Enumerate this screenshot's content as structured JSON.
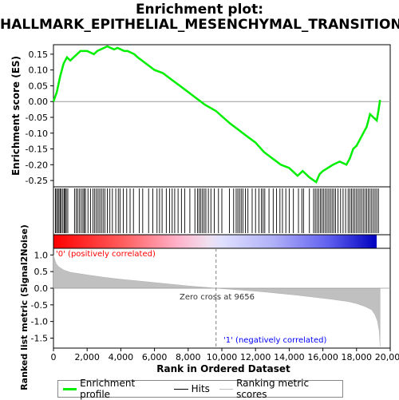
{
  "title_line1": "Enrichment plot:",
  "title_line2": "HALLMARK_EPITHELIAL_MESENCHYMAL_TRANSITION",
  "colors": {
    "profile": "#00ee00",
    "hits": "#000000",
    "ranking": "#c0c0c0",
    "zero_line": "#808080",
    "pos_label": "#ff0000",
    "neg_label": "#0000ff"
  },
  "legend": {
    "profile": "Enrichment profile",
    "hits": "Hits",
    "ranking": "Ranking metric scores"
  },
  "chart_data": [
    {
      "type": "line",
      "panel": "enrichment",
      "ylabel": "Enrichment score (ES)",
      "ylim": [
        -0.27,
        0.18
      ],
      "yticks": [
        0.15,
        0.1,
        0.05,
        0.0,
        -0.05,
        -0.1,
        -0.15,
        -0.2,
        -0.25
      ],
      "xlim": [
        0,
        20000
      ],
      "series": [
        {
          "name": "Enrichment profile",
          "x": [
            0,
            200,
            400,
            600,
            800,
            1000,
            1200,
            1400,
            1600,
            1800,
            2000,
            2200,
            2400,
            2600,
            2800,
            3000,
            3200,
            3400,
            3600,
            3800,
            4000,
            4200,
            4400,
            4600,
            4800,
            5000,
            5500,
            6000,
            6500,
            7000,
            7500,
            8000,
            8500,
            9000,
            9656,
            10500,
            11000,
            11500,
            12000,
            12500,
            13000,
            13500,
            14000,
            14500,
            14800,
            15200,
            15600,
            15800,
            16000,
            16300,
            16600,
            17000,
            17400,
            17600,
            17800,
            18000,
            18200,
            18400,
            18600,
            18800,
            19000,
            19200,
            19300,
            19400
          ],
          "y": [
            0.0,
            0.03,
            0.08,
            0.12,
            0.14,
            0.13,
            0.14,
            0.15,
            0.16,
            0.16,
            0.16,
            0.155,
            0.15,
            0.16,
            0.165,
            0.17,
            0.175,
            0.17,
            0.165,
            0.17,
            0.165,
            0.16,
            0.16,
            0.155,
            0.15,
            0.14,
            0.12,
            0.1,
            0.09,
            0.07,
            0.05,
            0.03,
            0.01,
            -0.01,
            -0.03,
            -0.07,
            -0.09,
            -0.11,
            -0.13,
            -0.16,
            -0.18,
            -0.2,
            -0.21,
            -0.235,
            -0.22,
            -0.24,
            -0.255,
            -0.23,
            -0.22,
            -0.21,
            -0.2,
            -0.19,
            -0.2,
            -0.18,
            -0.15,
            -0.14,
            -0.12,
            -0.1,
            -0.08,
            -0.04,
            -0.05,
            -0.06,
            -0.03,
            0.005
          ]
        }
      ]
    },
    {
      "type": "scatter",
      "panel": "hits",
      "xlim": [
        0,
        20000
      ],
      "hit_positions": [
        120,
        180,
        260,
        330,
        400,
        470,
        560,
        640,
        700,
        760,
        850,
        1250,
        1350,
        1450,
        1550,
        1650,
        1750,
        1830,
        1900,
        2050,
        2200,
        2350,
        2450,
        2550,
        2650,
        2750,
        2850,
        2950,
        3050,
        3200,
        3350,
        3500,
        3700,
        3850,
        3950,
        4150,
        4350,
        4550,
        4750,
        5100,
        5300,
        5650,
        5900,
        6150,
        6300,
        6450,
        6700,
        6900,
        7050,
        7200,
        7400,
        7600,
        7800,
        8100,
        8400,
        8550,
        8650,
        8750,
        8850,
        8950,
        9050,
        9200,
        9350,
        9550,
        9800,
        10000,
        10450,
        10700,
        10850,
        10950,
        11050,
        11150,
        11250,
        11400,
        11550,
        11800,
        12000,
        12200,
        12350,
        12450,
        12550,
        12800,
        13050,
        13250,
        13450,
        13600,
        13800,
        14000,
        14250,
        14550,
        14750,
        14850,
        15200,
        15450,
        15550,
        15650,
        15750,
        15850,
        15950,
        16050,
        16150,
        16250,
        16350,
        16450,
        16550,
        16650,
        16750,
        16900,
        17050,
        17200,
        17350,
        17500,
        17600,
        17700,
        17800,
        17900,
        18000,
        18100,
        18200,
        18300,
        18400,
        18500,
        18600,
        18700,
        18800,
        18900,
        19000,
        19100,
        19200,
        19300
      ]
    },
    {
      "type": "area",
      "panel": "ranked_metric",
      "ylabel": "Ranked list metric (Signal2Noise)",
      "xlabel": "Rank in Ordered Dataset",
      "ylim": [
        -1.8,
        1.2
      ],
      "yticks": [
        1.0,
        0.5,
        0.0,
        -0.5,
        -1.0,
        -1.5
      ],
      "xlim": [
        0,
        20000
      ],
      "xticks": [
        0,
        2000,
        4000,
        6000,
        8000,
        10000,
        12000,
        14000,
        16000,
        18000,
        20000
      ],
      "xtick_labels": [
        "0",
        "2,000",
        "4,000",
        "6,000",
        "8,000",
        "10,000",
        "12,000",
        "14,000",
        "16,000",
        "18,000",
        "20,000"
      ],
      "series": [
        {
          "name": "Ranking metric scores",
          "x": [
            0,
            50,
            150,
            300,
            600,
            1000,
            2000,
            3000,
            4000,
            5000,
            6000,
            7000,
            8000,
            9000,
            9656,
            10500,
            11500,
            12500,
            13500,
            14500,
            15500,
            16500,
            17500,
            18000,
            18500,
            18900,
            19100,
            19250,
            19350,
            19400
          ],
          "y": [
            1.0,
            0.9,
            0.75,
            0.65,
            0.55,
            0.48,
            0.4,
            0.33,
            0.27,
            0.22,
            0.17,
            0.12,
            0.07,
            0.03,
            0.0,
            -0.03,
            -0.07,
            -0.11,
            -0.16,
            -0.21,
            -0.27,
            -0.33,
            -0.4,
            -0.46,
            -0.55,
            -0.65,
            -0.8,
            -1.0,
            -1.3,
            -1.75
          ]
        }
      ],
      "zero_cross_label": "Zero cross at 9656",
      "zero_cross_rank": 9656,
      "pos_label": "'0' (positively correlated)",
      "neg_label": "'1' (negatively correlated)"
    }
  ]
}
